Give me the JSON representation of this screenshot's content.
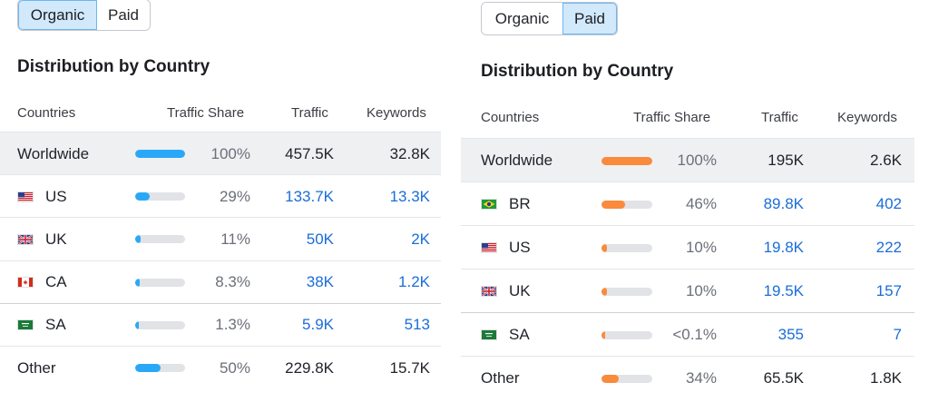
{
  "colors": {
    "organic_bar": "#2aa8f8",
    "paid_bar": "#fa8a3c",
    "link": "#1a6dd8"
  },
  "organic": {
    "toggle": [
      "Organic",
      "Paid"
    ],
    "active_tab": "Organic",
    "title": "Distribution by Country",
    "headers": {
      "countries": "Countries",
      "share": "Traffic Share",
      "traffic": "Traffic",
      "keywords": "Keywords"
    },
    "rows": [
      {
        "country": "Worldwide",
        "flag": "",
        "share": "100%",
        "share_value": 1.0,
        "traffic": "457.5K",
        "keywords": "32.8K",
        "linked": false
      },
      {
        "country": "US",
        "flag": "us-flag-icon",
        "share": "29%",
        "share_value": 0.29,
        "traffic": "133.7K",
        "keywords": "13.3K",
        "linked": true
      },
      {
        "country": "UK",
        "flag": "uk-flag-icon",
        "share": "11%",
        "share_value": 0.11,
        "traffic": "50K",
        "keywords": "2K",
        "linked": true
      },
      {
        "country": "CA",
        "flag": "ca-flag-icon",
        "share": "8.3%",
        "share_value": 0.083,
        "traffic": "38K",
        "keywords": "1.2K",
        "linked": true
      },
      {
        "country": "SA",
        "flag": "sa-flag-icon",
        "share": "1.3%",
        "share_value": 0.013,
        "traffic": "5.9K",
        "keywords": "513",
        "linked": true
      },
      {
        "country": "Other",
        "flag": "",
        "share": "50%",
        "share_value": 0.5,
        "traffic": "229.8K",
        "keywords": "15.7K",
        "linked": false
      }
    ]
  },
  "paid": {
    "toggle": [
      "Organic",
      "Paid"
    ],
    "active_tab": "Paid",
    "title": "Distribution by Country",
    "headers": {
      "countries": "Countries",
      "share": "Traffic Share",
      "traffic": "Traffic",
      "keywords": "Keywords"
    },
    "rows": [
      {
        "country": "Worldwide",
        "flag": "",
        "share": "100%",
        "share_value": 1.0,
        "traffic": "195K",
        "keywords": "2.6K",
        "linked": false
      },
      {
        "country": "BR",
        "flag": "br-flag-icon",
        "share": "46%",
        "share_value": 0.46,
        "traffic": "89.8K",
        "keywords": "402",
        "linked": true
      },
      {
        "country": "US",
        "flag": "us-flag-icon",
        "share": "10%",
        "share_value": 0.1,
        "traffic": "19.8K",
        "keywords": "222",
        "linked": true
      },
      {
        "country": "UK",
        "flag": "uk-flag-icon",
        "share": "10%",
        "share_value": 0.1,
        "traffic": "19.5K",
        "keywords": "157",
        "linked": true
      },
      {
        "country": "SA",
        "flag": "sa-flag-icon",
        "share": "<0.1%",
        "share_value": 0.001,
        "traffic": "355",
        "keywords": "7",
        "linked": true
      },
      {
        "country": "Other",
        "flag": "",
        "share": "34%",
        "share_value": 0.34,
        "traffic": "65.5K",
        "keywords": "1.8K",
        "linked": false
      }
    ]
  }
}
